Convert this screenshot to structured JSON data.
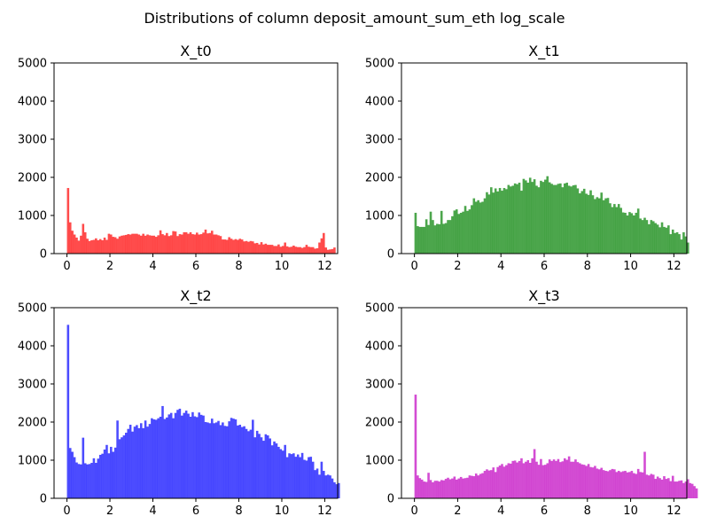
{
  "figure": {
    "suptitle": "Distributions of column deposit_amount_sum_eth log_scale"
  },
  "chart_data": [
    {
      "type": "bar",
      "title": "X_t0",
      "xlim": [
        -0.6,
        12.6
      ],
      "ylim": [
        0,
        5000
      ],
      "xticks": [
        0,
        2,
        4,
        6,
        8,
        10,
        12
      ],
      "yticks": [
        0,
        1000,
        2000,
        3000,
        4000,
        5000
      ],
      "bin_width": 0.1,
      "x_start": 0,
      "color": "#ff0000",
      "alpha": 0.7,
      "values": [
        1720,
        820,
        600,
        500,
        420,
        340,
        470,
        780,
        560,
        390,
        330,
        350,
        360,
        400,
        350,
        380,
        350,
        420,
        360,
        520,
        500,
        440,
        430,
        390,
        450,
        470,
        480,
        490,
        510,
        500,
        520,
        520,
        520,
        500,
        470,
        520,
        470,
        500,
        480,
        470,
        470,
        440,
        480,
        610,
        510,
        480,
        540,
        460,
        480,
        590,
        580,
        460,
        510,
        500,
        560,
        560,
        520,
        560,
        510,
        500,
        550,
        500,
        510,
        550,
        630,
        530,
        540,
        600,
        500,
        500,
        480,
        460,
        370,
        370,
        360,
        430,
        390,
        360,
        380,
        360,
        390,
        370,
        320,
        330,
        310,
        330,
        320,
        270,
        280,
        240,
        300,
        240,
        260,
        230,
        230,
        230,
        200,
        200,
        240,
        180,
        200,
        290,
        190,
        170,
        180,
        210,
        180,
        170,
        170,
        150,
        170,
        230,
        180,
        170,
        170,
        130,
        140,
        290,
        400,
        540,
        160,
        100,
        110,
        120,
        160
      ]
    },
    {
      "type": "bar",
      "title": "X_t1",
      "xlim": [
        -0.6,
        12.6
      ],
      "ylim": [
        0,
        5000
      ],
      "xticks": [
        0,
        2,
        4,
        6,
        8,
        10,
        12
      ],
      "yticks": [
        0,
        1000,
        2000,
        3000,
        4000,
        5000
      ],
      "bin_width": 0.1,
      "x_start": 0,
      "color": "#008000",
      "alpha": 0.7,
      "values": [
        1070,
        720,
        700,
        700,
        700,
        900,
        750,
        1100,
        880,
        740,
        780,
        770,
        1120,
        780,
        800,
        880,
        880,
        980,
        1130,
        1160,
        1040,
        1070,
        1100,
        1250,
        1120,
        1160,
        1270,
        1450,
        1360,
        1400,
        1340,
        1360,
        1450,
        1610,
        1550,
        1740,
        1600,
        1710,
        1630,
        1720,
        1650,
        1720,
        1690,
        1800,
        1760,
        1780,
        1840,
        1820,
        1860,
        1650,
        1960,
        1920,
        1860,
        1990,
        1880,
        1950,
        1780,
        1740,
        1910,
        1880,
        1940,
        2030,
        1870,
        1830,
        1800,
        1800,
        1830,
        1840,
        1740,
        1840,
        1860,
        1780,
        1760,
        1790,
        1800,
        1710,
        1580,
        1640,
        1700,
        1570,
        1540,
        1660,
        1530,
        1430,
        1480,
        1450,
        1600,
        1400,
        1450,
        1460,
        1320,
        1220,
        1300,
        1220,
        1300,
        1200,
        1080,
        1070,
        1000,
        1090,
        1060,
        1000,
        1070,
        1180,
        920,
        880,
        940,
        880,
        770,
        880,
        850,
        800,
        760,
        690,
        820,
        700,
        680,
        740,
        510,
        630,
        540,
        560,
        510,
        370,
        560,
        450,
        290
      ]
    },
    {
      "type": "bar",
      "title": "X_t2",
      "xlim": [
        -0.6,
        12.6
      ],
      "ylim": [
        0,
        5000
      ],
      "xticks": [
        0,
        2,
        4,
        6,
        8,
        10,
        12
      ],
      "yticks": [
        0,
        1000,
        2000,
        3000,
        4000,
        5000
      ],
      "bin_width": 0.1,
      "x_start": 0,
      "color": "#0000ff",
      "alpha": 0.7,
      "values": [
        4550,
        1320,
        1220,
        1080,
        940,
        900,
        890,
        1590,
        920,
        890,
        900,
        930,
        1050,
        930,
        1040,
        1140,
        1170,
        1280,
        1400,
        1180,
        1350,
        1220,
        1330,
        2040,
        1550,
        1600,
        1650,
        1720,
        1820,
        1930,
        1750,
        1880,
        1920,
        1840,
        1970,
        1840,
        2040,
        1880,
        1950,
        2100,
        2070,
        2060,
        2100,
        2140,
        2420,
        2080,
        2120,
        2200,
        2240,
        2100,
        2240,
        2320,
        2350,
        2170,
        2240,
        2300,
        2220,
        2140,
        2260,
        2150,
        2130,
        2250,
        2190,
        2170,
        2000,
        1990,
        1970,
        2090,
        1970,
        1990,
        2030,
        1920,
        1990,
        1900,
        1890,
        2020,
        2110,
        2090,
        2070,
        1910,
        1930,
        1870,
        1890,
        1820,
        1760,
        1800,
        2060,
        1600,
        1770,
        1690,
        1600,
        1510,
        1680,
        1650,
        1570,
        1390,
        1490,
        1440,
        1350,
        1290,
        1250,
        1400,
        1080,
        1180,
        1160,
        1180,
        1090,
        1150,
        1080,
        1190,
        1010,
        990,
        1080,
        1090,
        960,
        740,
        780,
        620,
        960,
        720,
        600,
        620,
        600,
        520,
        420,
        370,
        400
      ]
    },
    {
      "type": "bar",
      "title": "X_t3",
      "xlim": [
        -0.6,
        12.6
      ],
      "ylim": [
        0,
        5000
      ],
      "xticks": [
        0,
        2,
        4,
        6,
        8,
        10,
        12
      ],
      "yticks": [
        0,
        1000,
        2000,
        3000,
        4000,
        5000
      ],
      "bin_width": 0.1,
      "x_start": 0,
      "color": "#c000c0",
      "alpha": 0.7,
      "values": [
        2720,
        600,
        530,
        490,
        440,
        430,
        670,
        480,
        420,
        460,
        460,
        440,
        480,
        470,
        510,
        540,
        500,
        520,
        570,
        490,
        520,
        560,
        520,
        530,
        540,
        600,
        590,
        580,
        650,
        600,
        640,
        660,
        720,
        760,
        730,
        740,
        810,
        690,
        820,
        860,
        900,
        830,
        870,
        920,
        910,
        980,
        990,
        940,
        980,
        1050,
        920,
        960,
        1000,
        930,
        1050,
        1290,
        960,
        880,
        1030,
        870,
        880,
        920,
        1020,
        980,
        1020,
        980,
        1030,
        950,
        970,
        1050,
        1010,
        1100,
        960,
        960,
        1020,
        950,
        920,
        890,
        880,
        850,
        900,
        820,
        810,
        850,
        780,
        760,
        800,
        740,
        720,
        710,
        740,
        770,
        760,
        690,
        720,
        690,
        710,
        720,
        680,
        690,
        720,
        660,
        640,
        770,
        690,
        680,
        1220,
        620,
        600,
        640,
        620,
        510,
        570,
        530,
        490,
        580,
        510,
        530,
        450,
        590,
        440,
        440,
        460,
        470,
        400,
        440,
        500,
        400,
        380,
        320,
        260
      ]
    }
  ]
}
